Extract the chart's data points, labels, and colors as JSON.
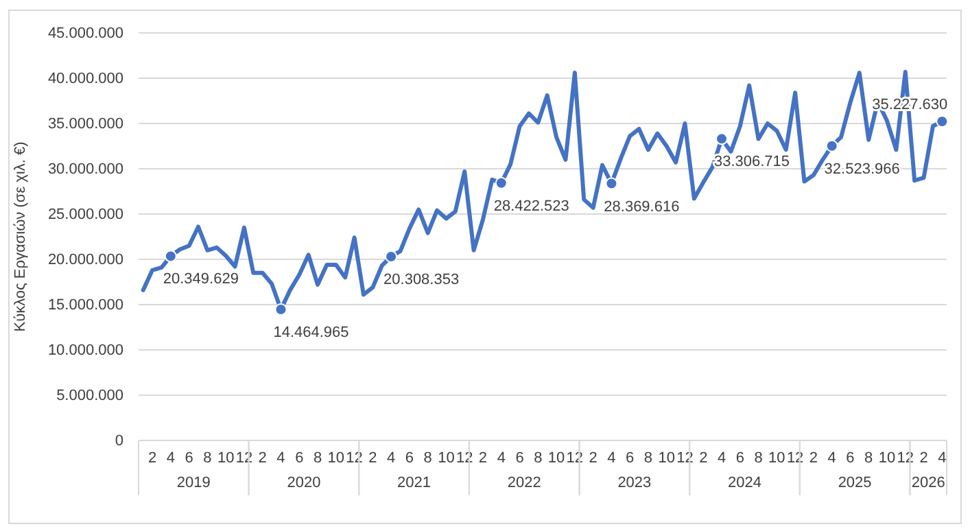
{
  "chart_data": {
    "type": "line",
    "ylabel": "Κύκλος Εργασιών (σε χιλ. €)",
    "categories": [
      null,
      "2",
      null,
      "4",
      null,
      "6",
      null,
      "8",
      null,
      "10",
      null,
      "12",
      null,
      "2",
      null,
      "4",
      null,
      "6",
      null,
      "8",
      null,
      "10",
      null,
      "12",
      null,
      "2",
      null,
      "4",
      null,
      "6",
      null,
      "8",
      null,
      "10",
      null,
      "12",
      null,
      "2",
      null,
      "4",
      null,
      "6",
      null,
      "8",
      null,
      "10",
      null,
      "12",
      null,
      "2",
      null,
      "4",
      null,
      "6",
      null,
      "8",
      null,
      "10",
      null,
      "12",
      null,
      "2",
      null,
      "4",
      null,
      "6",
      null,
      "8",
      null,
      "10",
      null,
      "12",
      null,
      "2",
      null,
      "4",
      null,
      "6",
      null,
      "8",
      null,
      "10",
      null,
      "12",
      null,
      "2",
      null,
      "4"
    ],
    "annotations": [
      "2019",
      "2020",
      "2021",
      "2022",
      "2023",
      "2024",
      "2025",
      "2026"
    ],
    "series": [
      {
        "color": "#4472c4",
        "values": [
          16600000,
          18800000,
          19100000,
          20349629,
          21100000,
          21500000,
          23600000,
          21000000,
          21300000,
          20400000,
          19200000,
          23500000,
          18500000,
          18500000,
          17300000,
          14464965,
          16600000,
          18300000,
          20500000,
          17200000,
          19400000,
          19400000,
          18000000,
          22400000,
          16100000,
          16900000,
          19300000,
          20308353,
          20900000,
          23400000,
          25500000,
          22900000,
          25400000,
          24500000,
          25300000,
          29700000,
          21000000,
          24400000,
          28800000,
          28422523,
          30500000,
          34700000,
          36100000,
          35100000,
          38100000,
          33500000,
          31000000,
          40600000,
          26600000,
          25700000,
          30400000,
          28369616,
          31100000,
          33600000,
          34400000,
          32100000,
          33900000,
          32500000,
          30700000,
          35000000,
          26700000,
          28500000,
          30200000,
          33306715,
          31900000,
          34700000,
          39200000,
          33300000,
          35000000,
          34200000,
          32100000,
          38400000,
          28600000,
          29300000,
          31000000,
          32523966,
          33500000,
          37300000,
          40600000,
          33200000,
          37400000,
          35300000,
          32100000,
          40700000,
          28700000,
          29000000,
          34700000,
          35227630
        ]
      },
      {
        "type": "scatter",
        "color": "#4472c4",
        "values": [
          null,
          null,
          null,
          20349629,
          null,
          null,
          null,
          null,
          null,
          null,
          null,
          null,
          null,
          null,
          null,
          14464965,
          null,
          null,
          null,
          null,
          null,
          null,
          null,
          null,
          null,
          null,
          null,
          20308353,
          null,
          null,
          null,
          null,
          null,
          null,
          null,
          null,
          null,
          null,
          null,
          28422523,
          null,
          null,
          null,
          null,
          null,
          null,
          null,
          null,
          null,
          null,
          null,
          28369616,
          null,
          null,
          null,
          null,
          null,
          null,
          null,
          null,
          null,
          null,
          null,
          33306715,
          null,
          null,
          null,
          null,
          null,
          null,
          null,
          null,
          null,
          null,
          null,
          32523966,
          null,
          null,
          null,
          null,
          null,
          null,
          null,
          null,
          null,
          null,
          null,
          35227630
        ],
        "value_labels": [
          null,
          null,
          null,
          "20.349.629",
          null,
          null,
          null,
          null,
          null,
          null,
          null,
          null,
          null,
          null,
          null,
          "14.464.965",
          null,
          null,
          null,
          null,
          null,
          null,
          null,
          null,
          null,
          null,
          null,
          "20.308.353",
          null,
          null,
          null,
          null,
          null,
          null,
          null,
          null,
          null,
          null,
          null,
          "28.422.523",
          null,
          null,
          null,
          null,
          null,
          null,
          null,
          null,
          null,
          null,
          null,
          "28.369.616",
          null,
          null,
          null,
          null,
          null,
          null,
          null,
          null,
          null,
          null,
          null,
          "33.306.715",
          null,
          null,
          null,
          null,
          null,
          null,
          null,
          null,
          null,
          null,
          null,
          "32.523.966",
          null,
          null,
          null,
          null,
          null,
          null,
          null,
          null,
          null,
          null,
          null,
          "35.227.630"
        ]
      }
    ],
    "ylim": [
      0,
      45000000
    ],
    "yticks": [
      {
        "value": 0,
        "label": "0"
      },
      {
        "value": 5000000,
        "label": "5.000.000"
      },
      {
        "value": 10000000,
        "label": "10.000.000"
      },
      {
        "value": 15000000,
        "label": "15.000.000"
      },
      {
        "value": 20000000,
        "label": "20.000.000"
      },
      {
        "value": 25000000,
        "label": "25.000.000"
      },
      {
        "value": 30000000,
        "label": "30.000.000"
      },
      {
        "value": 35000000,
        "label": "35.000.000"
      },
      {
        "value": 40000000,
        "label": "40.000.000"
      },
      {
        "value": 45000000,
        "label": "45.000.000"
      }
    ],
    "grid": "y"
  }
}
